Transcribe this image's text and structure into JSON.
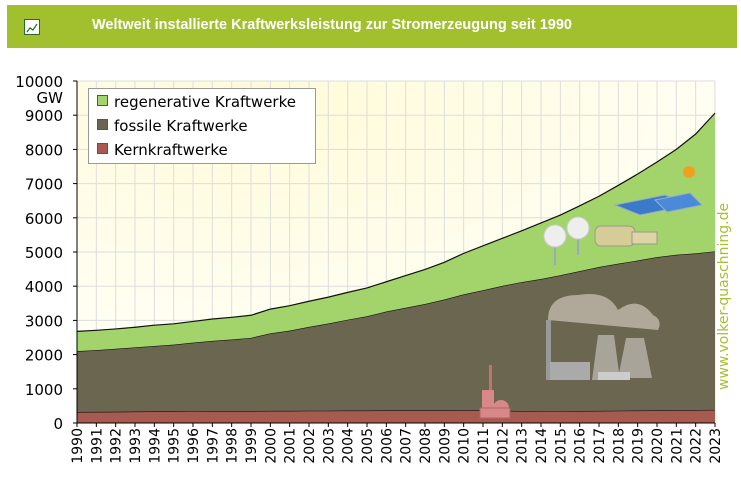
{
  "header": {
    "title": "Weltweit installierte Kraftwerksleistung zur Stromerzeugung seit 1990",
    "icon": "line-chart-icon"
  },
  "watermark": "www.volker-quaschning.de",
  "chart_data": {
    "type": "area",
    "stacked": true,
    "title": "Weltweit installierte Kraftwerksleistung zur Stromerzeugung seit 1990",
    "ylabel": "GW",
    "ylim": [
      0,
      10000
    ],
    "yticks": [
      0,
      1000,
      2000,
      3000,
      4000,
      5000,
      6000,
      7000,
      8000,
      9000,
      10000
    ],
    "grid": true,
    "legend_position": "top-left",
    "x": [
      1990,
      1991,
      1992,
      1993,
      1994,
      1995,
      1996,
      1997,
      1998,
      1999,
      2000,
      2001,
      2002,
      2003,
      2004,
      2005,
      2006,
      2007,
      2008,
      2009,
      2010,
      2011,
      2012,
      2013,
      2014,
      2015,
      2016,
      2017,
      2018,
      2019,
      2020,
      2021,
      2022,
      2023
    ],
    "series": [
      {
        "name": "Kernkraftwerke",
        "color": "#a85a50",
        "values": [
          320,
          325,
          330,
          335,
          340,
          340,
          345,
          350,
          350,
          350,
          355,
          355,
          360,
          360,
          365,
          365,
          370,
          370,
          370,
          370,
          375,
          370,
          355,
          350,
          345,
          345,
          350,
          355,
          360,
          365,
          370,
          375,
          380,
          385
        ]
      },
      {
        "name": "fossile Kraftwerke",
        "color": "#6b6650",
        "values": [
          1780,
          1805,
          1840,
          1875,
          1910,
          1950,
          2005,
          2050,
          2090,
          2140,
          2265,
          2345,
          2450,
          2550,
          2655,
          2755,
          2890,
          3000,
          3110,
          3240,
          3385,
          3510,
          3655,
          3770,
          3865,
          3975,
          4090,
          4205,
          4300,
          4385,
          4480,
          4545,
          4580,
          4635
        ]
      },
      {
        "name": "regenerative Kraftwerke",
        "color": "#a3d46c",
        "values": [
          580,
          580,
          580,
          590,
          610,
          610,
          620,
          640,
          650,
          660,
          710,
          730,
          750,
          770,
          800,
          830,
          870,
          940,
          1010,
          1090,
          1200,
          1300,
          1390,
          1500,
          1640,
          1760,
          1910,
          2070,
          2290,
          2530,
          2780,
          3080,
          3490,
          4040
        ]
      }
    ]
  }
}
